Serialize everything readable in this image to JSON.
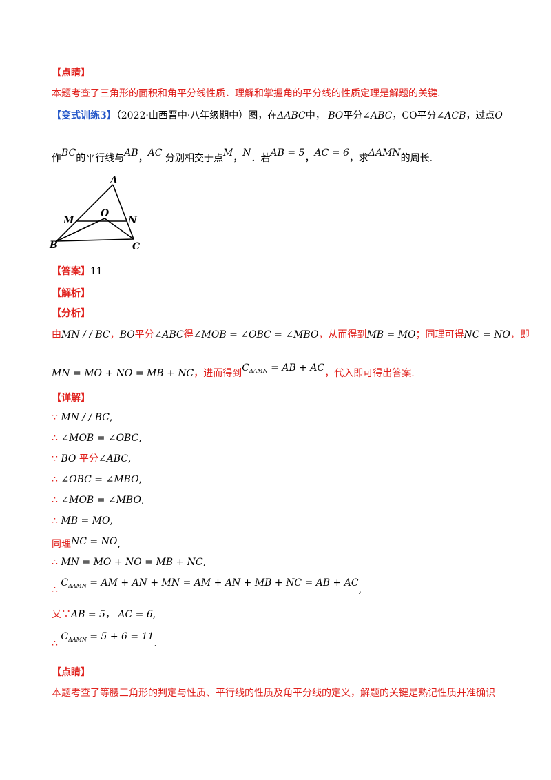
{
  "section1": {
    "title": "【点睛】",
    "text": "本题考查了三角形的面积和角平分线性质．理解和掌握角的平分线的性质定理是解题的关键."
  },
  "problem": {
    "tag": "【变式训练3】",
    "intro": "（2022·山西晋中·八年级期中）图，在",
    "tri": "ΔABC",
    "p1": "中，",
    "bo": "BO",
    "p2": "平分",
    "angle1": "∠ABC",
    "p3": "，CO平分",
    "angle2": "∠ACB",
    "p4": "，过点",
    "o": "O",
    "l2_start": "作",
    "bc": "BC",
    "l2_a": "的平行线与",
    "ab": "AB",
    "comma": "，",
    "ac": "AC",
    "l2_b": "分别相交于点",
    "m": "M",
    "n": "N",
    "l2_c": "．若",
    "ab_eq": "AB = 5",
    "ac_eq": "AC = 6",
    "l2_d": "，求",
    "amn": "ΔAMN",
    "l2_e": "的周长."
  },
  "figure": {
    "labels": [
      "A",
      "M",
      "O",
      "N",
      "B",
      "C"
    ]
  },
  "answer": {
    "tag": "【答案】",
    "value": "11"
  },
  "analysis_tag": "【解析】",
  "fenxi_tag": "【分析】",
  "fenxi": {
    "l1_a": "由",
    "l1_mn": "MN / / BC",
    "l1_b": "，",
    "l1_bo": "BO",
    "l1_c": "平分",
    "l1_ang": "∠ABC",
    "l1_d": "得",
    "l1_eq": "∠MOB = ∠OBC = ∠MBO",
    "l1_e": "，从而得到",
    "l1_mb": "MB = MO",
    "l1_f": "；同理可得",
    "l1_nc": "NC = NO",
    "l1_g": "，即",
    "l2_eq": "MN = MO + NO = MB + NC",
    "l2_a": "，进而得到",
    "l2_c": "C",
    "l2_sub": "ΔAMN",
    "l2_eq2": "= AB + AC",
    "l2_b": "，代入即可得出答案."
  },
  "detail": {
    "tag": "【详解】",
    "s1": "∵",
    "e1": "MN / / BC",
    "p1": ",",
    "s2": "∴",
    "e2": "∠MOB = ∠OBC",
    "p2": ",",
    "s3": "∵",
    "e3a": "BO",
    "e3b": "平分",
    "e3c": "∠ABC",
    "p3": ",",
    "s4": "∴",
    "e4": "∠OBC = ∠MBO",
    "p4": ",",
    "s5": "∴",
    "e5": "∠MOB = ∠MBO",
    "p5": ",",
    "s6": "∴",
    "e6": "MB = MO",
    "p6": ",",
    "s7": "同理",
    "e7": "NC = NO",
    "p7": ",",
    "s8": "∴",
    "e8": "MN = MO + NO = MB + NC",
    "p8": ",",
    "s9": "∴",
    "e9c": "C",
    "e9sub": "ΔAMN",
    "e9": "= AM + AN + MN = AM + AN + MB + NC = AB + AC",
    "p9": ",",
    "s10": "又∵",
    "e10a": "AB = 5",
    "e10b": "AC = 6",
    "p10": ",",
    "s11": "∴",
    "e11c": "C",
    "e11sub": "ΔAMN",
    "e11": "= 5 + 6 = 11",
    "p11": "."
  },
  "section2": {
    "title": "【点睛】",
    "text": "本题考查了等腰三角形的判定与性质、平行线的性质及角平分线的定义，解题的关键是熟记性质并准确识"
  }
}
